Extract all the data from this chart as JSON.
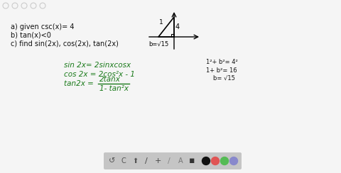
{
  "bg_color": "#f5f5f5",
  "text_color_black": "#111111",
  "text_color_green": "#1a7a1a",
  "lines_a": "a) given csc(x)= 4",
  "lines_b": "b) tan(x)<0",
  "lines_c": "c) find sin(2x), cos(2x), tan(2x)",
  "formula1": "sin 2x= 2sinxcosx",
  "formula2": "cos 2x = 2cos²x - 1",
  "formula3": "tan2x =",
  "formula3b": "2tanx",
  "formula3c": "1- tan²x",
  "pyth1": "1²+ b²= 4²",
  "pyth2": "1+ b²= 16",
  "pyth3": "b= √15",
  "label_4": "4",
  "label_1": "1",
  "label_b": "b=√15",
  "toolbar_bg": "#cccccc",
  "icon_color": "#555555",
  "dot_black": "#111111",
  "dot_red": "#e05555",
  "dot_green": "#55bb55",
  "dot_purple": "#8888cc"
}
